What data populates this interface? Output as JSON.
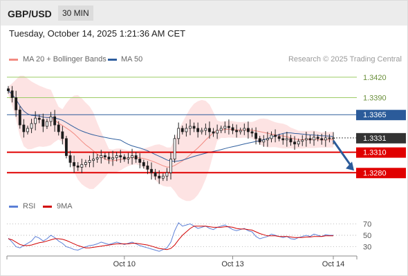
{
  "header": {
    "pair": "GBP/USD",
    "timeframe": "30 MIN"
  },
  "date_line": "Tuesday, October 14, 2025 1:21:36 AM CET",
  "legend": {
    "ma20": "MA 20 + Bollinger Bands",
    "ma50": "MA 50",
    "rsi": "RSI",
    "ma9": "9MA"
  },
  "credit": "Research © 2025 Trading Central",
  "colors": {
    "ma20": "#f28b82",
    "ma50": "#2e5e9e",
    "support": "#e00000",
    "target": "#2b5b9a",
    "resistance": "#9ccc65",
    "rsi": "#5b7fd6",
    "rsi_ma": "#d10000"
  },
  "chart_data": [
    {
      "type": "candlestick",
      "x_ticks": [
        "Oct 10",
        "Oct 13",
        "Oct 14"
      ],
      "price_range": [
        1.3255,
        1.3435
      ],
      "last_price": "1.3331",
      "levels": [
        {
          "kind": "resistance",
          "label": "1.3420",
          "value": 1.342
        },
        {
          "kind": "resistance",
          "label": "1.3390",
          "value": 1.339
        },
        {
          "kind": "pivot",
          "label": "1.3365",
          "value": 1.3365
        },
        {
          "kind": "support",
          "label": "1.3310",
          "value": 1.331
        },
        {
          "kind": "support",
          "label": "1.3280",
          "value": 1.328
        }
      ],
      "close": [
        1.34,
        1.339,
        1.3372,
        1.335,
        1.334,
        1.3345,
        1.3352,
        1.336,
        1.3358,
        1.3348,
        1.3355,
        1.3362,
        1.335,
        1.334,
        1.333,
        1.3305,
        1.3295,
        1.329,
        1.3288,
        1.3292,
        1.3295,
        1.3298,
        1.33,
        1.3302,
        1.3305,
        1.3303,
        1.33,
        1.3302,
        1.3305,
        1.3303,
        1.33,
        1.3302,
        1.3305,
        1.33,
        1.3295,
        1.329,
        1.3285,
        1.328,
        1.3275,
        1.3272,
        1.3275,
        1.328,
        1.33,
        1.333,
        1.3345,
        1.334,
        1.3345,
        1.3348,
        1.3345,
        1.334,
        1.3342,
        1.3345,
        1.334,
        1.3338,
        1.3342,
        1.3345,
        1.3348,
        1.3346,
        1.3342,
        1.334,
        1.3342,
        1.3345,
        1.334,
        1.3338,
        1.333,
        1.3325,
        1.3328,
        1.333,
        1.3335,
        1.3333,
        1.333,
        1.3328,
        1.333,
        1.3325,
        1.3322,
        1.3326,
        1.3328,
        1.333,
        1.3328,
        1.3332,
        1.333,
        1.3328,
        1.3331,
        1.333,
        1.3331
      ]
    },
    {
      "type": "line",
      "title": "RSI",
      "y_ticks": [
        70,
        50,
        30
      ],
      "y_range": [
        15,
        85
      ],
      "series": [
        {
          "name": "RSI",
          "values": [
            45,
            38,
            30,
            28,
            32,
            36,
            40,
            48,
            45,
            40,
            44,
            50,
            46,
            40,
            36,
            30,
            28,
            25,
            24,
            27,
            30,
            32,
            33,
            35,
            38,
            36,
            34,
            36,
            38,
            36,
            34,
            36,
            38,
            35,
            32,
            30,
            28,
            26,
            24,
            22,
            25,
            28,
            38,
            58,
            72,
            66,
            68,
            70,
            66,
            62,
            64,
            66,
            62,
            60,
            64,
            66,
            68,
            64,
            60,
            58,
            60,
            62,
            58,
            56,
            48,
            44,
            46,
            48,
            52,
            50,
            48,
            46,
            48,
            44,
            43,
            46,
            48,
            50,
            48,
            52,
            50,
            48,
            51,
            50,
            50
          ]
        },
        {
          "name": "9MA",
          "values": [
            44,
            42,
            38,
            34,
            32,
            32,
            33,
            35,
            37,
            38,
            40,
            42,
            44,
            44,
            43,
            41,
            38,
            35,
            32,
            30,
            28,
            28,
            29,
            30,
            31,
            32,
            33,
            34,
            35,
            35,
            35,
            35,
            36,
            36,
            35,
            34,
            33,
            31,
            29,
            27,
            26,
            25,
            27,
            33,
            42,
            50,
            56,
            62,
            66,
            66,
            66,
            66,
            65,
            64,
            64,
            64,
            65,
            65,
            64,
            62,
            61,
            61,
            60,
            59,
            56,
            53,
            51,
            49,
            49,
            49,
            48,
            48,
            48,
            47,
            46,
            46,
            46,
            47,
            47,
            48,
            48,
            48,
            49,
            49,
            49
          ]
        }
      ]
    }
  ]
}
